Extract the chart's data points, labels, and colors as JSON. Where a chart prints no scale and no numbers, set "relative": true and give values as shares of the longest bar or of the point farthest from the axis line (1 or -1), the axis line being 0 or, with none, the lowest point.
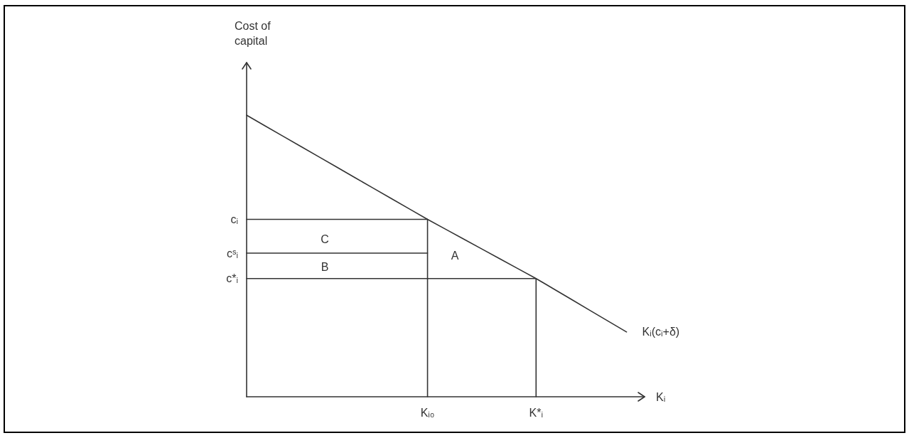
{
  "chart_data": {
    "type": "line",
    "relative": true,
    "xlabel": "Kᵢ",
    "categories": [
      null,
      null,
      null,
      null,
      null,
      null,
      null,
      null,
      null,
      null,
      "Kᵢ₀",
      null,
      null,
      null,
      null,
      null,
      "K*ᵢ",
      null,
      null,
      null,
      null,
      null,
      null
    ],
    "series": [
      {
        "name": "Kᵢ(cᵢ+δ)",
        "color": "#333333",
        "values": [
          1.0,
          0.963,
          0.926,
          0.889,
          0.852,
          0.815,
          0.778,
          0.741,
          0.704,
          0.667,
          0.63,
          0.595,
          0.56,
          0.525,
          0.49,
          0.455,
          0.42,
          0.382,
          0.344,
          0.306,
          0.268,
          0.23,
          null
        ]
      },
      {
        "name": "cᵢ",
        "color": "#333333",
        "values": [
          0.63,
          0.63,
          0.63,
          0.63,
          0.63,
          0.63,
          0.63,
          0.63,
          0.63,
          0.63,
          0.63,
          null,
          null,
          null,
          null,
          null,
          null,
          null,
          null,
          null,
          null,
          null,
          null
        ]
      },
      {
        "name": "cˢᵢ",
        "color": "#333333",
        "values": [
          0.51,
          0.51,
          0.51,
          0.51,
          0.51,
          0.51,
          0.51,
          0.51,
          0.51,
          0.51,
          0.51,
          null,
          null,
          null,
          null,
          null,
          null,
          null,
          null,
          null,
          null,
          null,
          null
        ]
      },
      {
        "name": "c*ᵢ",
        "color": "#333333",
        "values": [
          0.42,
          0.42,
          0.42,
          0.42,
          0.42,
          0.42,
          0.42,
          0.42,
          0.42,
          0.42,
          0.42,
          0.42,
          0.42,
          0.42,
          0.42,
          0.42,
          0.42,
          null,
          null,
          null,
          null,
          null,
          null
        ]
      },
      {
        "color": "#333333",
        "x": [
          "Kᵢ₀",
          "Kᵢ₀"
        ],
        "values": [
          0,
          0.63
        ]
      },
      {
        "color": "#333333",
        "x": [
          "K*ᵢ",
          "K*ᵢ"
        ],
        "values": [
          0,
          0.42
        ]
      }
    ],
    "annotations": [
      "Cost of capital",
      "C",
      "B",
      "A"
    ],
    "marker": "none",
    "line_style": "solid"
  }
}
